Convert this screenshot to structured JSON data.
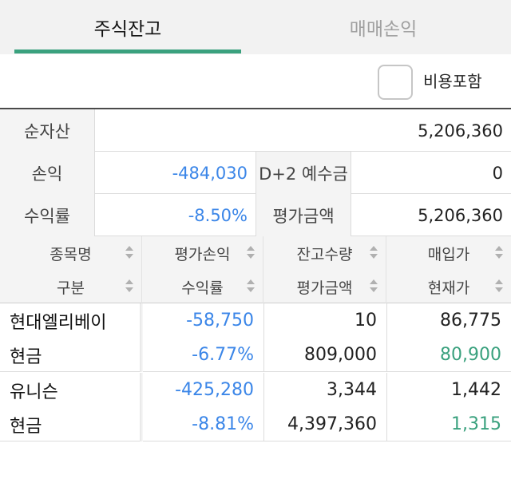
{
  "tabs": [
    {
      "label": "주식잔고",
      "active": true
    },
    {
      "label": "매매손익",
      "active": false
    }
  ],
  "options": {
    "include_costs_label": "비용포함",
    "include_costs_checked": false
  },
  "summary": {
    "net_assets_label": "순자산",
    "net_assets_value": "5,206,360",
    "pl_label": "손익",
    "pl_value": "-484,030",
    "d2_deposit_label": "D+2 예수금",
    "d2_deposit_value": "0",
    "return_label": "수익률",
    "return_value": "-8.50%",
    "eval_amount_label": "평가금액",
    "eval_amount_value": "5,206,360"
  },
  "table": {
    "headers_top": [
      "종목명",
      "평가손익",
      "잔고수량",
      "매입가"
    ],
    "headers_bottom": [
      "구분",
      "수익률",
      "평가금액",
      "현재가"
    ],
    "rows": [
      {
        "name": "현대엘리베이",
        "type": "현금",
        "pl": "-58,750",
        "return": "-6.77%",
        "quantity": "10",
        "eval": "809,000",
        "buy_price": "86,775",
        "current_price": "80,900"
      },
      {
        "name": "유니슨",
        "type": "현금",
        "pl": "-425,280",
        "return": "-8.81%",
        "quantity": "3,344",
        "eval": "4,397,360",
        "buy_price": "1,442",
        "current_price": "1,315"
      }
    ]
  },
  "colors": {
    "accent": "#3aa17e",
    "loss": "#3b86e8"
  }
}
